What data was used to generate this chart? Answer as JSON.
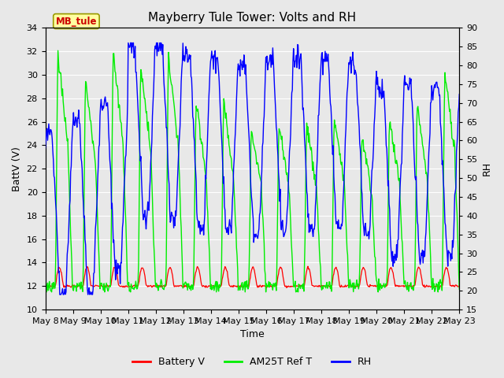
{
  "title": "Mayberry Tule Tower: Volts and RH",
  "xlabel": "Time",
  "ylabel_left": "BattV (V)",
  "ylabel_right": "RH",
  "station_label": "MB_tule",
  "ylim_left": [
    10,
    34
  ],
  "ylim_right": [
    15,
    90
  ],
  "yticks_left": [
    10,
    12,
    14,
    16,
    18,
    20,
    22,
    24,
    26,
    28,
    30,
    32,
    34
  ],
  "yticks_right": [
    15,
    20,
    25,
    30,
    35,
    40,
    45,
    50,
    55,
    60,
    65,
    70,
    75,
    80,
    85,
    90
  ],
  "xtick_labels": [
    "May 8",
    "May 9",
    "May 10",
    "May 11",
    "May 12",
    "May 13",
    "May 14",
    "May 15",
    "May 16",
    "May 17",
    "May 18",
    "May 19",
    "May 20",
    "May 21",
    "May 22",
    "May 23"
  ],
  "background_color": "#e8e8e8",
  "grid_color": "#ffffff",
  "battery_color": "#ff0000",
  "am25t_color": "#00ee00",
  "rh_color": "#0000ff",
  "legend_labels": [
    "Battery V",
    "AM25T Ref T",
    "RH"
  ],
  "title_fontsize": 11,
  "axis_fontsize": 9,
  "tick_fontsize": 8,
  "legend_fontsize": 9
}
